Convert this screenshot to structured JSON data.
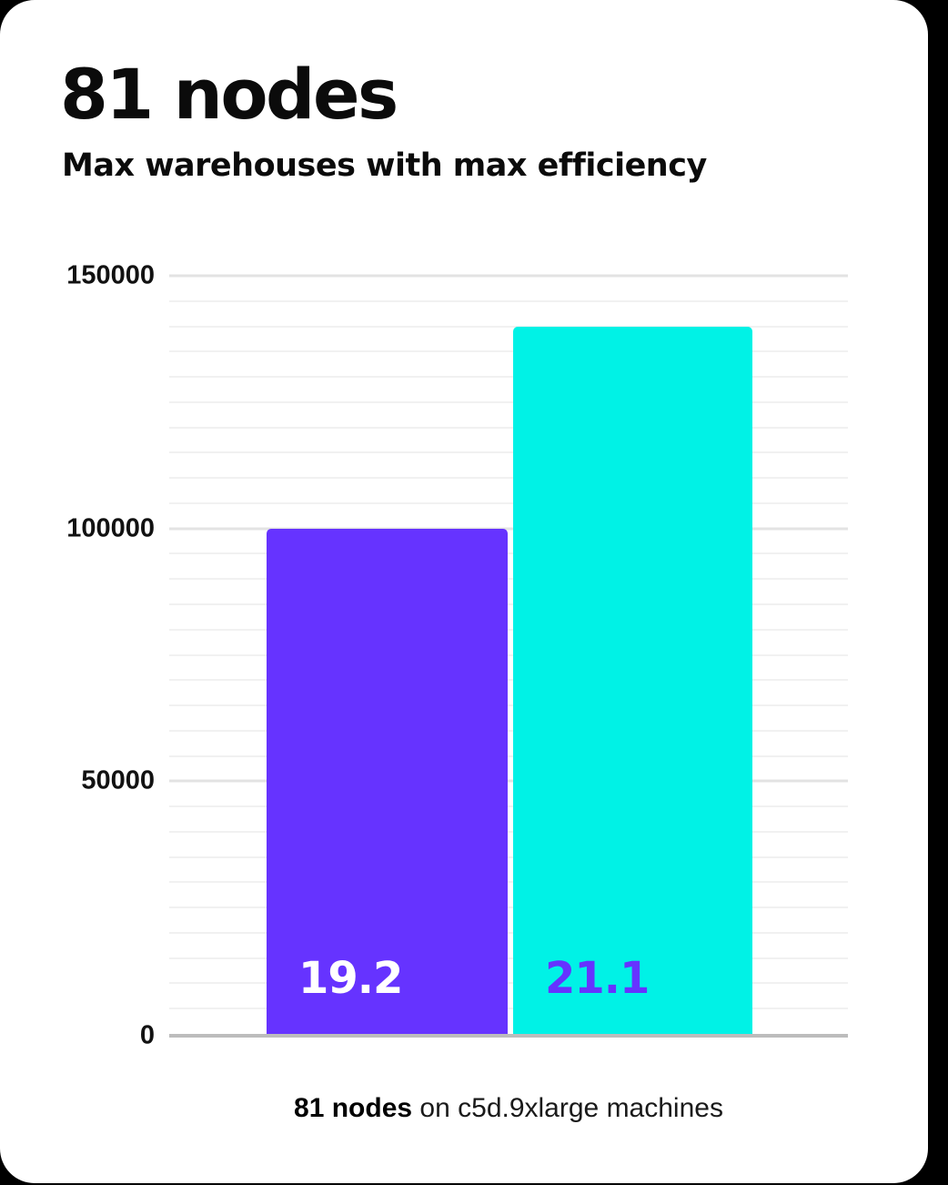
{
  "card": {
    "title": "81 nodes",
    "subtitle": "Max warehouses with max efficiency",
    "caption_bold": "81 nodes",
    "caption_rest": " on c5d.9xlarge machines"
  },
  "colors": {
    "page_background": "#000000",
    "card_background": "#ffffff",
    "title_text": "#0b0b0b",
    "axis_label_text": "#111111",
    "gridline_minor": "#f1f1f1",
    "gridline_major": "#e3e3e3",
    "axis_line": "#bcbcbc",
    "bar_purple": "#6633ff",
    "bar_cyan": "#00f2e6",
    "label_on_purple": "#ffffff",
    "label_on_cyan": "#6633ff"
  },
  "chart_data": {
    "type": "bar",
    "title": "81 nodes",
    "subtitle": "Max warehouses with max efficiency",
    "categories": [
      "19.2",
      "21.1"
    ],
    "values": [
      100000,
      140000
    ],
    "bar_colors": [
      "#6633ff",
      "#00f2e6"
    ],
    "bar_label_colors": [
      "#ffffff",
      "#6633ff"
    ],
    "value_labels_shown": [
      "19.2",
      "21.1"
    ],
    "xlabel": "",
    "ylabel": "",
    "ylim": [
      0,
      150000
    ],
    "yticks": [
      0,
      50000,
      100000,
      150000
    ],
    "ytick_labels": [
      "0",
      "50000",
      "100000",
      "150000"
    ],
    "minor_gridline_step": 5000,
    "major_gridline_step": 50000,
    "grid": "horizontal",
    "legend": "none",
    "caption": "81 nodes on c5d.9xlarge machines"
  }
}
